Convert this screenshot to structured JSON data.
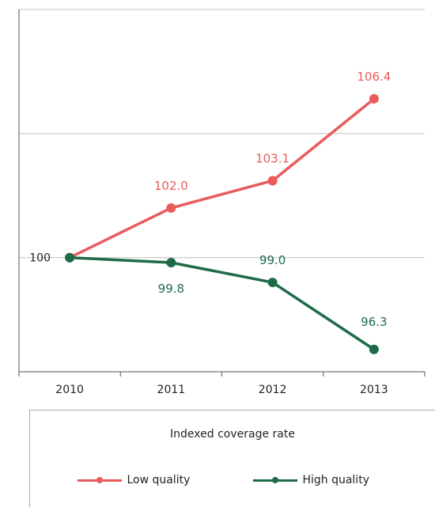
{
  "chart_data": {
    "type": "line",
    "categories": [
      "2010",
      "2011",
      "2012",
      "2013"
    ],
    "series": [
      {
        "name": "Low quality",
        "values": [
          100,
          102.0,
          103.1,
          106.4
        ],
        "labels": [
          "",
          "102.0",
          "103.1",
          "106.4"
        ],
        "color": "#ea5b5b"
      },
      {
        "name": "High quality",
        "values": [
          100,
          99.8,
          99.0,
          96.3
        ],
        "labels": [
          "",
          "99.8",
          "99.0",
          "96.3"
        ],
        "color": "#1e6b48"
      }
    ],
    "ytick_labels": [
      {
        "value": 100,
        "label": "100"
      }
    ],
    "ylim": [
      95.4,
      110
    ],
    "gridlines": [
      100,
      105,
      110
    ],
    "grid": true,
    "xlabel": "",
    "ylabel": "",
    "legend_title": "Indexed coverage rate",
    "legend_position": "bottom"
  }
}
